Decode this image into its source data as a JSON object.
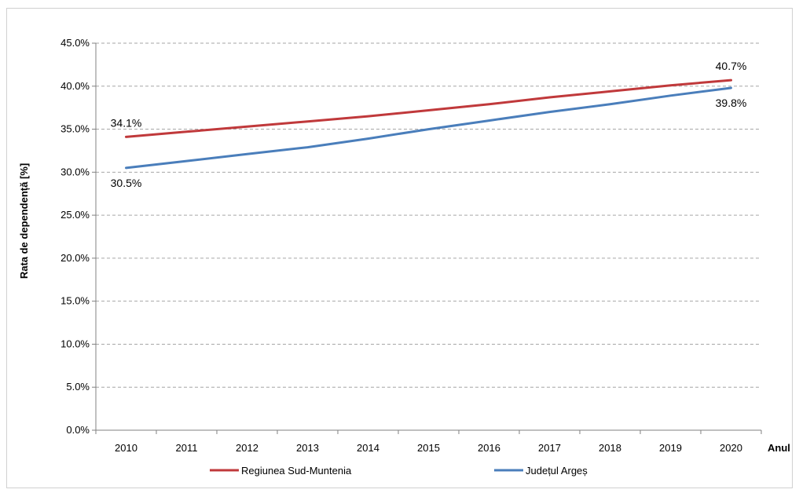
{
  "chart_data": {
    "type": "line",
    "title": "",
    "xlabel": "Anul",
    "ylabel": "Rata de dependență [%]",
    "x": [
      "2010",
      "2011",
      "2012",
      "2013",
      "2014",
      "2015",
      "2016",
      "2017",
      "2018",
      "2019",
      "2020"
    ],
    "ylim": [
      0,
      45
    ],
    "yticks": [
      0,
      5,
      10,
      15,
      20,
      25,
      30,
      35,
      40,
      45
    ],
    "ytick_labels": [
      "0.0%",
      "5.0%",
      "10.0%",
      "15.0%",
      "20.0%",
      "25.0%",
      "30.0%",
      "35.0%",
      "40.0%",
      "45.0%"
    ],
    "grid": true,
    "legend": "bottom",
    "series": [
      {
        "name": "Regiunea Sud-Muntenia",
        "color": "#c0393b",
        "values": [
          34.1,
          34.7,
          35.3,
          35.9,
          36.5,
          37.2,
          37.9,
          38.7,
          39.4,
          40.1,
          40.7
        ]
      },
      {
        "name": "Județul Argeș",
        "color": "#4a7ebb",
        "values": [
          30.5,
          31.3,
          32.1,
          32.9,
          33.9,
          35.0,
          36.0,
          37.0,
          37.9,
          38.9,
          39.8
        ]
      }
    ],
    "annotations": [
      {
        "series": 0,
        "index": 0,
        "text": "34.1%"
      },
      {
        "series": 0,
        "index": 10,
        "text": "40.7%"
      },
      {
        "series": 1,
        "index": 0,
        "text": "30.5%"
      },
      {
        "series": 1,
        "index": 10,
        "text": "39.8%"
      }
    ]
  }
}
